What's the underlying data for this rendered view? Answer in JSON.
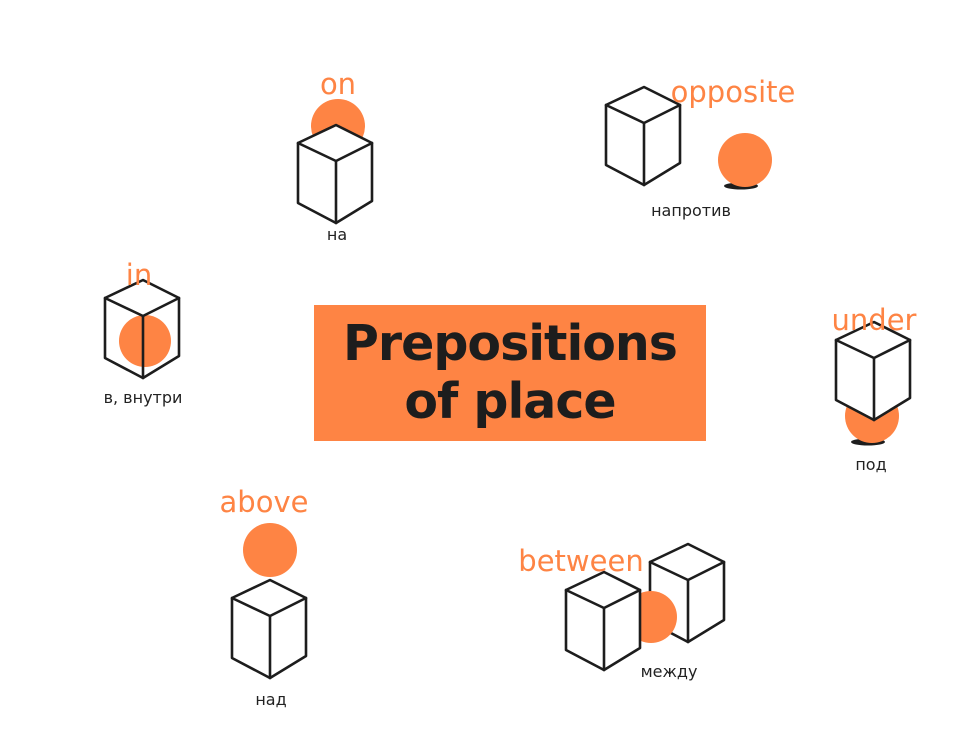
{
  "title": {
    "line1": "Prepositions",
    "line2": "of place"
  },
  "colors": {
    "accent": "#fe8444",
    "ink": "#1d1d1d"
  },
  "items": [
    {
      "key": "on",
      "english": "on",
      "russian": "на"
    },
    {
      "key": "opposite",
      "english": "opposite",
      "russian": "напротив"
    },
    {
      "key": "in",
      "english": "in",
      "russian": "в, внутри"
    },
    {
      "key": "under",
      "english": "under",
      "russian": "под"
    },
    {
      "key": "above",
      "english": "above",
      "russian": "над"
    },
    {
      "key": "between",
      "english": "between",
      "russian": "между"
    }
  ]
}
